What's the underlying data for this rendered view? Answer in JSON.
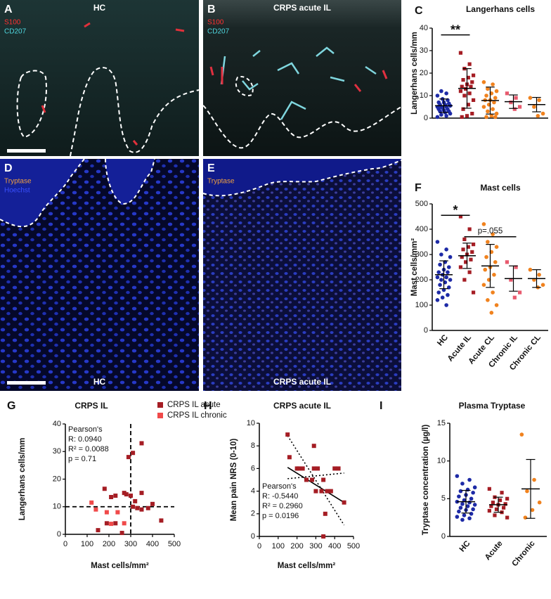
{
  "images": [
    {
      "panel": "A",
      "title": "HC",
      "labels": [
        "S100",
        "CD207"
      ]
    },
    {
      "panel": "B",
      "title": "CRPS acute IL",
      "labels": [
        "S100",
        "CD207"
      ]
    },
    {
      "panel": "D",
      "title": "HC",
      "labels": [
        "Tryptase",
        "Hoechst"
      ]
    },
    {
      "panel": "E",
      "title": "CRPS acute IL",
      "labels": [
        "Tryptase"
      ]
    }
  ],
  "chart_data": [
    {
      "type": "dot",
      "panel": "C",
      "title": "Langerhans cells",
      "ylabel": "Langerhans cells/mm",
      "ylim": [
        0,
        40
      ],
      "yticks": [
        0,
        10,
        20,
        30,
        40
      ],
      "groups": [
        {
          "color": "#1d2aa6",
          "values": [
            0.5,
            1,
            1.5,
            2,
            2.5,
            3,
            3,
            3.5,
            4,
            4,
            4.5,
            5,
            5,
            5,
            5.5,
            6,
            6,
            6.5,
            7,
            7,
            8,
            8.5,
            10,
            11,
            12
          ],
          "mean": 5.5,
          "sd": 3
        },
        {
          "color": "#a51d24",
          "values": [
            29,
            24,
            22,
            19,
            18,
            17,
            16,
            15,
            14,
            14,
            13,
            12,
            11,
            10,
            8,
            6,
            4,
            2,
            1,
            0.5
          ],
          "mean": 13.2,
          "sd": 8.8
        },
        {
          "color": "#f0821e",
          "values": [
            16,
            15,
            13,
            12,
            11,
            10,
            9,
            8,
            8,
            7,
            6,
            5,
            4,
            3,
            2,
            1,
            0.5,
            0.5
          ],
          "mean": 7.8,
          "sd": 6
        },
        {
          "color": "#e85a6e",
          "values": [
            11,
            9,
            7,
            5,
            4
          ],
          "mean": 7.3,
          "sd": 3
        },
        {
          "color": "#f0821e",
          "values": [
            9,
            8,
            5,
            2,
            1
          ],
          "mean": 6,
          "sd": 3.2
        }
      ],
      "significance": [
        {
          "label": "**",
          "from": 0,
          "to": 1,
          "y": 37
        }
      ]
    },
    {
      "type": "dot",
      "panel": "F",
      "title": "Mast cells",
      "ylabel": "Mast cells/mm²",
      "categories": [
        "HC",
        "Acute IL",
        "Acute CL",
        "Chronic IL",
        "Chronic CL"
      ],
      "ylim": [
        0,
        500
      ],
      "yticks": [
        0,
        100,
        200,
        300,
        400,
        500
      ],
      "groups": [
        {
          "color": "#1d2aa6",
          "values": [
            350,
            320,
            300,
            290,
            270,
            260,
            250,
            240,
            230,
            230,
            220,
            210,
            210,
            200,
            200,
            190,
            180,
            170,
            160,
            150,
            140,
            130,
            120,
            100
          ],
          "mean": 220,
          "sd": 55
        },
        {
          "color": "#a51d24",
          "values": [
            450,
            400,
            360,
            340,
            330,
            320,
            310,
            300,
            290,
            280,
            270,
            250,
            230,
            200,
            150
          ],
          "mean": 295,
          "sd": 50
        },
        {
          "color": "#f0821e",
          "values": [
            420,
            380,
            350,
            330,
            310,
            290,
            270,
            250,
            240,
            220,
            200,
            180,
            150,
            120,
            100,
            70
          ],
          "mean": 255,
          "sd": 85
        },
        {
          "color": "#e85a6e",
          "values": [
            270,
            250,
            200,
            150,
            130
          ],
          "mean": 205,
          "sd": 50
        },
        {
          "color": "#f0821e",
          "values": [
            240,
            220,
            200,
            180,
            170
          ],
          "mean": 205,
          "sd": 35
        }
      ],
      "significance": [
        {
          "label": "*",
          "from": 0,
          "to": 1,
          "y": 455
        },
        {
          "label": "p=.055",
          "from": 1,
          "to": 3,
          "y": 370
        }
      ]
    },
    {
      "type": "scatter",
      "panel": "G",
      "title": "CRPS IL",
      "xlabel": "Mast cells/mm²",
      "ylabel": "Langerhans cells/mm",
      "xlim": [
        0,
        500
      ],
      "xticks": [
        0,
        100,
        200,
        300,
        400,
        500
      ],
      "ylim": [
        0,
        40
      ],
      "yticks": [
        0,
        10,
        20,
        30,
        40
      ],
      "vline": 300,
      "hline": 10,
      "annotation": [
        "Pearson's",
        "R: 0.0940",
        "R² = 0.0088",
        "p = 0.71"
      ],
      "series": [
        {
          "name": "CRPS IL acute",
          "color": "#a51d24",
          "x": [
            290,
            310,
            350,
            180,
            210,
            230,
            270,
            280,
            300,
            320,
            330,
            350,
            380,
            400,
            440,
            150,
            230,
            190,
            260,
            350,
            310
          ],
          "y": [
            28,
            29.5,
            33,
            16.5,
            13.5,
            14,
            15,
            14.5,
            14,
            12,
            9.5,
            9,
            9.5,
            11,
            5,
            1.5,
            4,
            4,
            0.5,
            15,
            10
          ]
        },
        {
          "name": "CRPS IL chronic",
          "color": "#f04a4a",
          "x": [
            120,
            140,
            190,
            210,
            240,
            270
          ],
          "y": [
            11.5,
            9,
            8,
            3.8,
            8,
            4
          ]
        }
      ]
    },
    {
      "type": "scatter",
      "panel": "H",
      "title": "CRPS acute IL",
      "xlabel": "Mast cells/mm²",
      "ylabel": "Mean pain NRS (0-10)",
      "xlim": [
        0,
        500
      ],
      "xticks": [
        0,
        100,
        200,
        300,
        400,
        500
      ],
      "ylim": [
        0,
        10
      ],
      "yticks": [
        0,
        2,
        4,
        6,
        8,
        10
      ],
      "annotation": [
        "Pearson's",
        "R: -0.5440",
        "R² = 0.2960",
        "p = 0.0196"
      ],
      "fit": [
        [
          150,
          6.1
        ],
        [
          450,
          3.0
        ]
      ],
      "ci": [
        [
          [
            150,
            8.9
          ],
          [
            450,
            1.0
          ]
        ],
        [
          [
            150,
            5.1
          ],
          [
            450,
            5.6
          ]
        ]
      ],
      "series": [
        {
          "color": "#a51d24",
          "x": [
            150,
            160,
            210,
            230,
            250,
            280,
            290,
            290,
            310,
            330,
            340,
            350,
            340,
            360,
            380,
            400,
            420,
            450,
            200,
            300
          ],
          "y": [
            9,
            7,
            6,
            6,
            5,
            5,
            8,
            6,
            6,
            4,
            5,
            2,
            0,
            4,
            4,
            6,
            6,
            3,
            6,
            4
          ]
        }
      ]
    },
    {
      "type": "dot",
      "panel": "I",
      "title": "Plasma Tryptase",
      "ylabel": "Tryptase concentration (µg/l)",
      "categories": [
        "HC",
        "Acute",
        "Chronic"
      ],
      "ylim": [
        0,
        15
      ],
      "yticks": [
        0,
        5,
        10,
        15
      ],
      "groups": [
        {
          "color": "#1d2aa6",
          "values": [
            8,
            7.5,
            7,
            6.5,
            6.2,
            6,
            5.8,
            5.5,
            5.3,
            5,
            4.8,
            4.6,
            4.5,
            4.3,
            4.2,
            4,
            3.8,
            3.6,
            3.5,
            3.3,
            3,
            2.8,
            2.6,
            2.4,
            2.2
          ],
          "mean": 4.6,
          "sd": 1.5
        },
        {
          "color": "#a51d24",
          "values": [
            6.3,
            5.8,
            5.2,
            5,
            4.8,
            4.5,
            4.3,
            4.2,
            4,
            3.8,
            3.6,
            3.4,
            3.2,
            2.8,
            2.5
          ],
          "mean": 4.2,
          "sd": 1
        },
        {
          "color": "#f0821e",
          "values": [
            13.5,
            7.5,
            6,
            4.5,
            3.5,
            2.5
          ],
          "mean": 6.3,
          "sd": 3.9
        }
      ]
    }
  ]
}
